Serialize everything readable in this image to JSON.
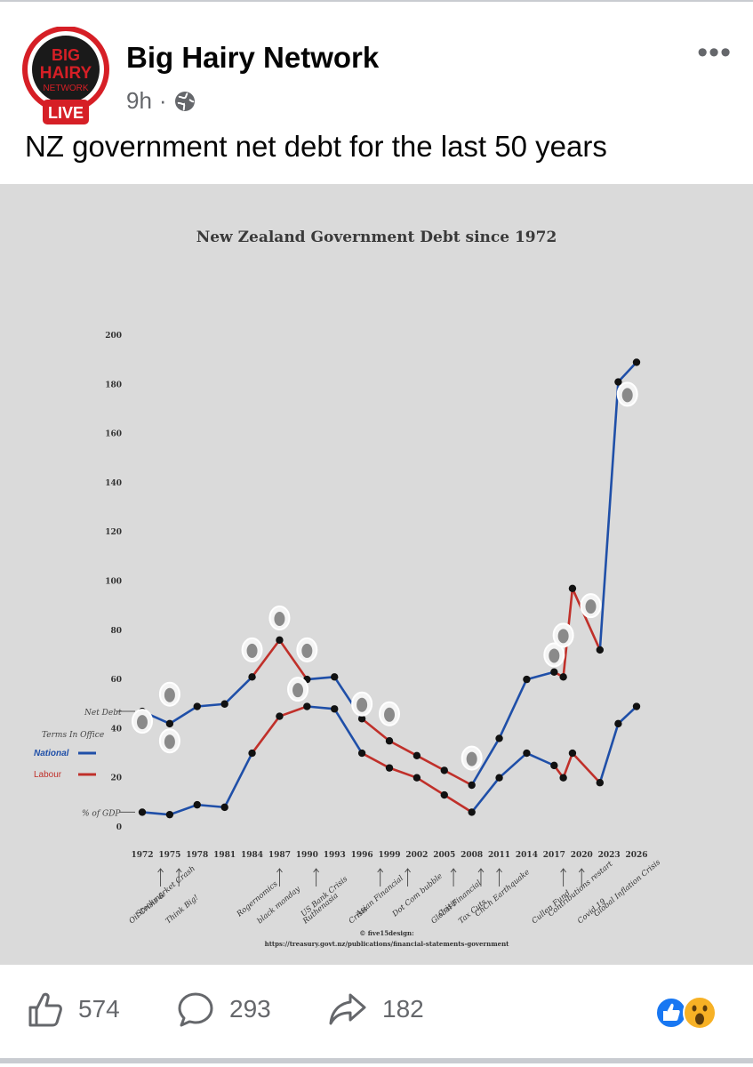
{
  "post": {
    "author": "Big Hairy Network",
    "time": "9h",
    "separator": "·",
    "caption": "NZ government net debt for the last 50 years",
    "logo": {
      "line1": "BIG",
      "line2": "HAIRY",
      "line3": "NETWORK",
      "badge": "LIVE"
    }
  },
  "engagement": {
    "likes": "574",
    "comments": "293",
    "shares": "182",
    "reactions": [
      "like",
      "wow"
    ]
  },
  "colors": {
    "national": "#1f4fa8",
    "labour": "#c0302a",
    "brand_red": "#d61f26",
    "meta_grey": "#65676b"
  },
  "chart_data": {
    "type": "line",
    "title": "New Zealand Government Debt since 1972",
    "ylim": [
      0,
      200
    ],
    "yticks": [
      0,
      20,
      40,
      60,
      80,
      100,
      120,
      140,
      160,
      180,
      200
    ],
    "x_labels": [
      "1972",
      "1975",
      "1978",
      "1981",
      "1984",
      "1987",
      "1990",
      "1993",
      "1996",
      "1999",
      "2002",
      "2005",
      "2008",
      "2011",
      "2014",
      "2017",
      "2020",
      "2023",
      "2026"
    ],
    "legend": {
      "title": "Terms In Office",
      "national": "National",
      "labour": "Labour"
    },
    "axis_notes": {
      "net_debt": "Net Debt",
      "pct_gdp": "% of GDP"
    },
    "series": [
      {
        "name": "Net Debt",
        "points": [
          [
            1972,
            47,
            "labour"
          ],
          [
            1975,
            42,
            "national"
          ],
          [
            1978,
            49,
            "national"
          ],
          [
            1981,
            50,
            "national"
          ],
          [
            1984,
            61,
            "national"
          ],
          [
            1987,
            76,
            "labour"
          ],
          [
            1990,
            60,
            "labour"
          ],
          [
            1993,
            61,
            "national"
          ],
          [
            1996,
            44,
            "national"
          ],
          [
            1999,
            35,
            "labour"
          ],
          [
            2002,
            29,
            "labour"
          ],
          [
            2005,
            23,
            "labour"
          ],
          [
            2008,
            17,
            "labour"
          ],
          [
            2011,
            36,
            "national"
          ],
          [
            2014,
            60,
            "national"
          ],
          [
            2017,
            63,
            "national"
          ],
          [
            2018,
            61,
            "labour"
          ],
          [
            2019,
            97,
            "labour"
          ],
          [
            2022,
            72,
            "labour"
          ],
          [
            2024,
            181,
            "national"
          ],
          [
            2026,
            189,
            "national"
          ]
        ]
      },
      {
        "name": "% of GDP",
        "points": [
          [
            1972,
            6,
            "labour"
          ],
          [
            1975,
            5,
            "national"
          ],
          [
            1978,
            9,
            "national"
          ],
          [
            1981,
            8,
            "national"
          ],
          [
            1984,
            30,
            "national"
          ],
          [
            1987,
            45,
            "labour"
          ],
          [
            1990,
            49,
            "labour"
          ],
          [
            1993,
            48,
            "national"
          ],
          [
            1996,
            30,
            "national"
          ],
          [
            1999,
            24,
            "labour"
          ],
          [
            2002,
            20,
            "labour"
          ],
          [
            2005,
            13,
            "labour"
          ],
          [
            2008,
            6,
            "labour"
          ],
          [
            2011,
            20,
            "national"
          ],
          [
            2014,
            30,
            "national"
          ],
          [
            2017,
            25,
            "national"
          ],
          [
            2018,
            20,
            "labour"
          ],
          [
            2019,
            30,
            "labour"
          ],
          [
            2022,
            18,
            "labour"
          ],
          [
            2024,
            42,
            "national"
          ],
          [
            2026,
            49,
            "national"
          ]
        ]
      }
    ],
    "annotations": [
      {
        "text": "Oil Crisis &",
        "year": 1972
      },
      {
        "text": "Stockmarket Crash",
        "year": 1972
      },
      {
        "text": "Think Big!",
        "year": 1976
      },
      {
        "text": "Rogernomics",
        "year": 1983
      },
      {
        "text": "black monday",
        "year": 1986
      },
      {
        "text": "US Bank Crisis",
        "year": 1990
      },
      {
        "text": "Ruthenasia",
        "year": 1991
      },
      {
        "text": "Asian Financial",
        "year": 1996
      },
      {
        "text": "Crisis",
        "year": 1996
      },
      {
        "text": "Dot Com bubble",
        "year": 2000
      },
      {
        "text": "Global Financial",
        "year": 2005
      },
      {
        "text": "Crisis",
        "year": 2005
      },
      {
        "text": "Tax Cuts",
        "year": 2008
      },
      {
        "text": "ChCh Earthquake",
        "year": 2009
      },
      {
        "text": "Cullen Fund",
        "year": 2016
      },
      {
        "text": "Contributions restart",
        "year": 2017
      },
      {
        "text": "Covid 19",
        "year": 2021
      },
      {
        "text": "Global Inflation Crisis",
        "year": 2022
      }
    ],
    "credit": [
      "© five15design:",
      "https://treasury.govt.nz/publications/financial-statements-government"
    ]
  }
}
